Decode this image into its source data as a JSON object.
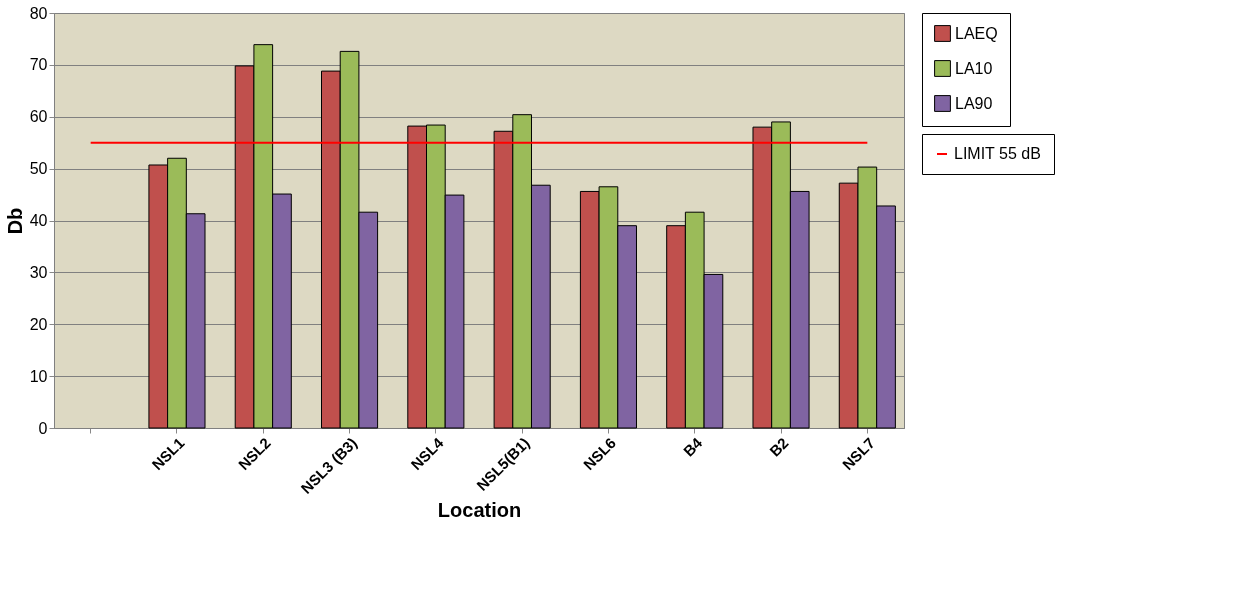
{
  "chart_data": {
    "type": "bar",
    "xlabel": "Location",
    "ylabel": "Db",
    "categories": [
      null,
      "NSL1",
      "NSL2",
      "NSL3 (B3)",
      "NSL4",
      "NSL5(B1)",
      "NSL6",
      "B4",
      "B2",
      "NSL7"
    ],
    "series": [
      {
        "name": "LAEQ",
        "color": "#c0504d",
        "values": [
          null,
          50.7,
          69.8,
          68.8,
          58.2,
          57.2,
          45.6,
          39.0,
          58.0,
          47.2
        ]
      },
      {
        "name": "LA10",
        "color": "#9bbb59",
        "values": [
          null,
          52.0,
          73.9,
          72.6,
          58.4,
          60.4,
          46.5,
          41.6,
          59.0,
          50.3
        ]
      },
      {
        "name": "LA90",
        "color": "#8064a2",
        "values": [
          null,
          41.3,
          45.1,
          41.6,
          44.9,
          46.8,
          39.0,
          29.6,
          45.6,
          42.8
        ]
      },
      {
        "name": "LIMIT 55 dB",
        "type": "line",
        "color": "#ff0000",
        "values": [
          55,
          55,
          55,
          55,
          55,
          55,
          55,
          55,
          55,
          55
        ]
      }
    ],
    "ylim": [
      0,
      80
    ],
    "yticks": [
      0,
      10,
      20,
      30,
      40,
      50,
      60,
      70,
      80
    ],
    "grid": "y",
    "legend": "right",
    "marker": "none",
    "line_style": "solid"
  }
}
